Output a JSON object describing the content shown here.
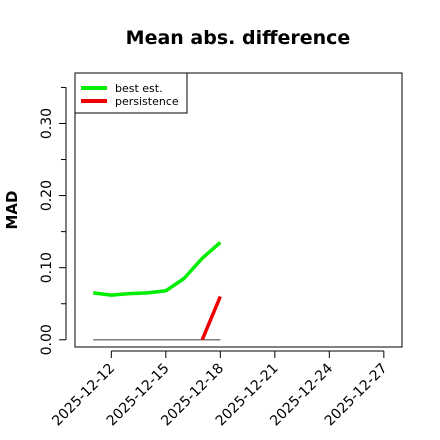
{
  "chart_data": {
    "type": "line",
    "title": "Mean abs. difference",
    "ylabel": "MAD",
    "xlabel": "",
    "x_ticks": [
      "2025-12-12",
      "2025-12-15",
      "2025-12-18",
      "2025-12-21",
      "2025-12-24",
      "2025-12-27"
    ],
    "xlim": [
      "2025-12-10",
      "2025-12-28"
    ],
    "ylim": [
      -0.01,
      0.37
    ],
    "y_ticks": [
      0.0,
      0.1,
      0.2,
      0.3
    ],
    "y_tick_labels": [
      "0.00",
      "0.10",
      "0.20",
      "0.30"
    ],
    "grid": false,
    "legend_position": "top-left",
    "series": [
      {
        "name": "best est.",
        "color": "#00ee00",
        "points": [
          {
            "x": "2025-12-11",
            "y": 0.065
          },
          {
            "x": "2025-12-12",
            "y": 0.062
          },
          {
            "x": "2025-12-13",
            "y": 0.064
          },
          {
            "x": "2025-12-14",
            "y": 0.065
          },
          {
            "x": "2025-12-15",
            "y": 0.068
          },
          {
            "x": "2025-12-16",
            "y": 0.085
          },
          {
            "x": "2025-12-17",
            "y": 0.113
          },
          {
            "x": "2025-12-18",
            "y": 0.135
          }
        ]
      },
      {
        "name": "persistence",
        "color": "#ee0000",
        "points": [
          {
            "x": "2025-12-17",
            "y": 0.0
          },
          {
            "x": "2025-12-18",
            "y": 0.06
          }
        ]
      }
    ],
    "baseline": {
      "color": "#555555",
      "points": [
        {
          "x": "2025-12-11",
          "y": 0.0
        },
        {
          "x": "2025-12-18",
          "y": 0.0
        }
      ]
    }
  }
}
